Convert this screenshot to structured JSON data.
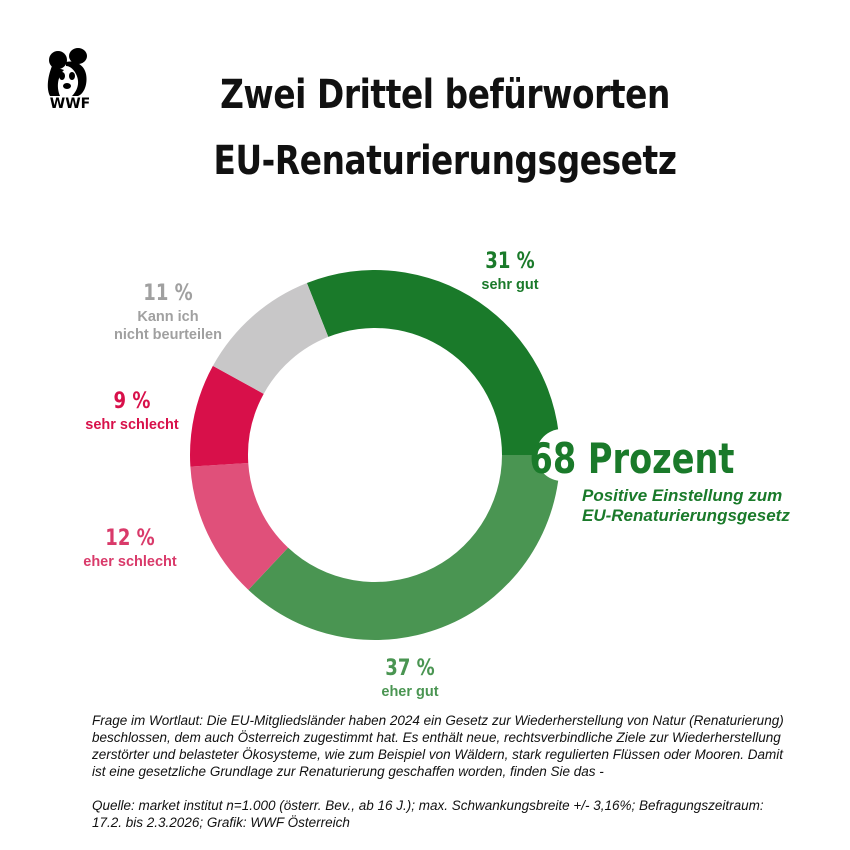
{
  "logo": {
    "text": "WWF",
    "icon": "panda-icon"
  },
  "title": {
    "line1": "Zwei Drittel befürworten",
    "line2": "EU-Renaturierungsgesetz"
  },
  "chart_data": {
    "type": "pie",
    "variant": "donut",
    "slices": [
      {
        "label": "sehr gut",
        "value": 31,
        "value_label": "31 %",
        "color": "#1a7a2a",
        "text_color": "#1a7a2a"
      },
      {
        "label": "eher gut",
        "value": 37,
        "value_label": "37 %",
        "color": "#4a9552",
        "text_color": "#4a9552"
      },
      {
        "label": "eher schlecht",
        "value": 12,
        "value_label": "12 %",
        "color": "#e0507a",
        "text_color": "#d93a6a"
      },
      {
        "label": "sehr schlecht",
        "value": 9,
        "value_label": "9 %",
        "color": "#d8104a",
        "text_color": "#d8104a"
      },
      {
        "label": "Kann ich nicht beurteilen",
        "value": 11,
        "value_label": "11 %",
        "color": "#c8c7c8",
        "text_color": "#a0a0a0"
      }
    ],
    "callout": {
      "value_label": "68 Prozent",
      "text_line1": "Positive Einstellung zum",
      "text_line2": "EU-Renaturierungsgesetz",
      "color": "#1a7a2a"
    }
  },
  "footnote": {
    "question": "Frage im Wortlaut: Die EU-Mitgliedsländer haben 2024 ein Gesetz zur Wiederherstellung von Natur (Renaturierung) beschlossen, dem auch Österreich zugestimmt hat. Es enthält neue, rechtsverbindliche Ziele zur Wiederherstellung zerstörter und belasteter Ökosysteme, wie zum Beispiel von Wäldern, stark regulierten Flüssen oder Mooren. Damit ist eine gesetzliche Grundlage zur Renaturierung geschaffen worden, finden Sie das -",
    "source": "Quelle: market institut n=1.000 (österr. Bev., ab 16 J.); max. Schwankungsbreite +/- 3,16%; Befragungszeitraum: 17.2. bis 2.3.2026; Grafik: WWF Österreich"
  }
}
